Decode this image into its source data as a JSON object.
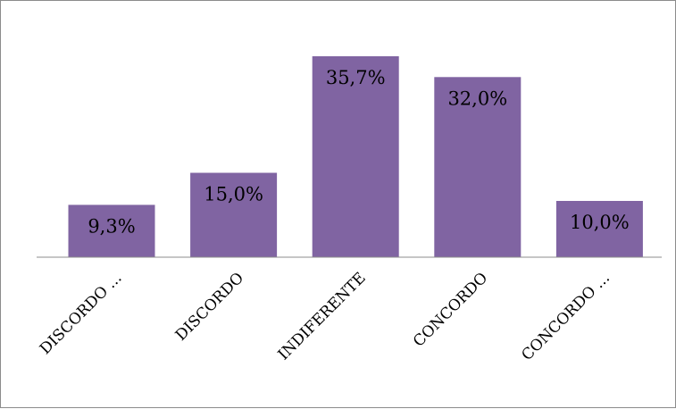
{
  "chart_data": {
    "type": "bar",
    "categories": [
      "DISCORDO ...",
      "DISCORDO",
      "INDIFERENTE",
      "CONCORDO",
      "CONCORDO ..."
    ],
    "values": [
      9.3,
      15.0,
      35.7,
      32.0,
      10.0
    ],
    "data_labels": [
      "9,3%",
      "15,0%",
      "35,7%",
      "32,0%",
      "10,0%"
    ],
    "title": "",
    "xlabel": "",
    "ylabel": "",
    "ylim": [
      0,
      40
    ],
    "grid": false,
    "legend": "none",
    "bar_color": "#8064a2",
    "axis_color": "#8c8c8c"
  }
}
